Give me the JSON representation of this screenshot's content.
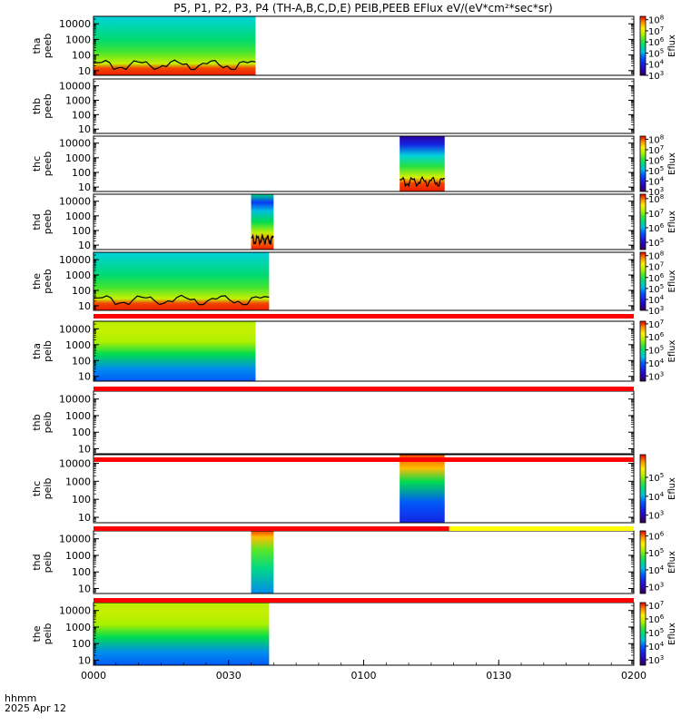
{
  "title": "P5, P1, P2, P3, P4 (TH-A,B,C,D,E) PEIB,PEEB EFlux eV/(eV*cm²*sec*sr)",
  "x_axis": {
    "label_line1": "hhmm",
    "label_line2": "2025 Apr 12",
    "ticks": [
      "0000",
      "0030",
      "0100",
      "0130",
      "0200"
    ]
  },
  "colorbar_label": "Eflux",
  "colors": {
    "flag_red": "#ff0000",
    "flag_yellow": "#ffff00",
    "trace": "#000000"
  },
  "chart_data": {
    "type": "heatmap",
    "x_unit": "hhmm, 2025 Apr 12",
    "x_range": [
      "0000",
      "0200"
    ],
    "y_scale": "log",
    "y_range": [
      5,
      30000
    ],
    "y_tick_labels": [
      "10",
      "100",
      "1000",
      "10000"
    ],
    "panels": [
      {
        "probe": "tha",
        "product": "peeb",
        "ylabel": [
          "tha",
          "peeb"
        ],
        "data_span": [
          "0000",
          "0036"
        ],
        "cbar_ticks": [
          "10^3",
          "10^4",
          "10^5",
          "10^6",
          "10^7",
          "10^8"
        ],
        "cbar_range_exp": [
          3,
          8.3
        ],
        "trace": true
      },
      {
        "probe": "thb",
        "product": "peeb",
        "ylabel": [
          "thb",
          "peeb"
        ],
        "data_span": null,
        "cbar_ticks": [],
        "trace": false
      },
      {
        "probe": "thc",
        "product": "peeb",
        "ylabel": [
          "thc",
          "peeb"
        ],
        "data_span": [
          "0108",
          "0118"
        ],
        "cbar_ticks": [
          "10^3",
          "10^4",
          "10^5",
          "10^6",
          "10^7",
          "10^8"
        ],
        "cbar_range_exp": [
          3,
          8.3
        ],
        "trace": true
      },
      {
        "probe": "thd",
        "product": "peeb",
        "ylabel": [
          "thd",
          "peeb"
        ],
        "data_span": [
          "0035",
          "0040"
        ],
        "cbar_ticks": [
          "10^5",
          "10^6",
          "10^7",
          "10^8"
        ],
        "cbar_range_exp": [
          4.5,
          8.3
        ],
        "trace": true
      },
      {
        "probe": "the",
        "product": "peeb",
        "ylabel": [
          "the",
          "peeb"
        ],
        "data_span": [
          "0000",
          "0039"
        ],
        "cbar_ticks": [
          "10^3",
          "10^4",
          "10^5",
          "10^6",
          "10^7",
          "10^8"
        ],
        "cbar_range_exp": [
          3,
          8.3
        ],
        "trace": true
      },
      {
        "probe": "tha",
        "product": "peib",
        "ylabel": [
          "tha",
          "peib"
        ],
        "data_span": [
          "0000",
          "0036"
        ],
        "cbar_ticks": [
          "10^3",
          "10^4",
          "10^5",
          "10^6",
          "10^7"
        ],
        "cbar_range_exp": [
          2.6,
          7.2
        ],
        "trace": false
      },
      {
        "probe": "thb",
        "product": "peib",
        "ylabel": [
          "thb",
          "peib"
        ],
        "data_span": null,
        "cbar_ticks": [],
        "trace": false
      },
      {
        "probe": "thc",
        "product": "peib",
        "ylabel": [
          "thc",
          "peib"
        ],
        "data_span": [
          "0108",
          "0118"
        ],
        "cbar_ticks": [
          "10^3",
          "10^4",
          "10^5"
        ],
        "cbar_range_exp": [
          2.6,
          6.2
        ],
        "trace": false
      },
      {
        "probe": "thd",
        "product": "peib",
        "ylabel": [
          "thd",
          "peib"
        ],
        "data_span": [
          "0035",
          "0040"
        ],
        "cbar_ticks": [
          "10^3",
          "10^4",
          "10^5",
          "10^6"
        ],
        "cbar_range_exp": [
          2.6,
          6.3
        ],
        "trace": false
      },
      {
        "probe": "the",
        "product": "peib",
        "ylabel": [
          "the",
          "peib"
        ],
        "data_span": [
          "0000",
          "0039"
        ],
        "cbar_ticks": [
          "10^3",
          "10^4",
          "10^5",
          "10^6",
          "10^7"
        ],
        "cbar_range_exp": [
          2.6,
          7.2
        ],
        "trace": false
      }
    ],
    "flag_bars": [
      {
        "after_panel": 4,
        "color": "red",
        "span": [
          "0000",
          "0200"
        ]
      },
      {
        "after_panel": 5,
        "color": "red",
        "span": [
          "0000",
          "0200"
        ]
      },
      {
        "after_panel": 6,
        "color": "red",
        "span": [
          "0000",
          "0200"
        ]
      },
      {
        "after_panel": 7,
        "color": "red",
        "span": [
          "0000",
          "0119"
        ]
      },
      {
        "after_panel": 7,
        "color": "yellow",
        "span": [
          "0119",
          "0200"
        ]
      },
      {
        "after_panel": 8,
        "color": "red",
        "span": [
          "0000",
          "0200"
        ]
      }
    ]
  }
}
